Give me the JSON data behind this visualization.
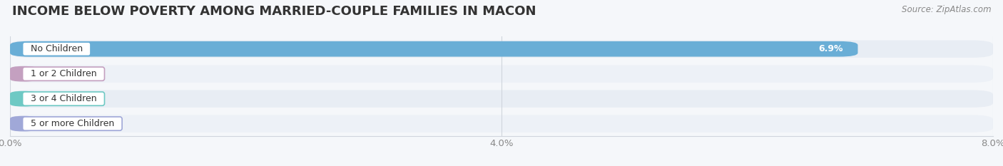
{
  "title": "INCOME BELOW POVERTY AMONG MARRIED-COUPLE FAMILIES IN MACON",
  "source": "Source: ZipAtlas.com",
  "categories": [
    "No Children",
    "1 or 2 Children",
    "3 or 4 Children",
    "5 or more Children"
  ],
  "values": [
    6.9,
    0.0,
    0.0,
    0.0
  ],
  "bar_colors": [
    "#6aaed6",
    "#c4a0c0",
    "#6ec9c4",
    "#a0a8d8"
  ],
  "xlim": [
    0,
    8.0
  ],
  "xticks": [
    0.0,
    4.0,
    8.0
  ],
  "xticklabels": [
    "0.0%",
    "4.0%",
    "8.0%"
  ],
  "bar_height": 0.62,
  "bg_light": "#eaeff5",
  "bg_dark": "#f2f5f9",
  "title_fontsize": 13,
  "tick_fontsize": 9.5,
  "label_fontsize": 9,
  "value_fontsize": 9
}
